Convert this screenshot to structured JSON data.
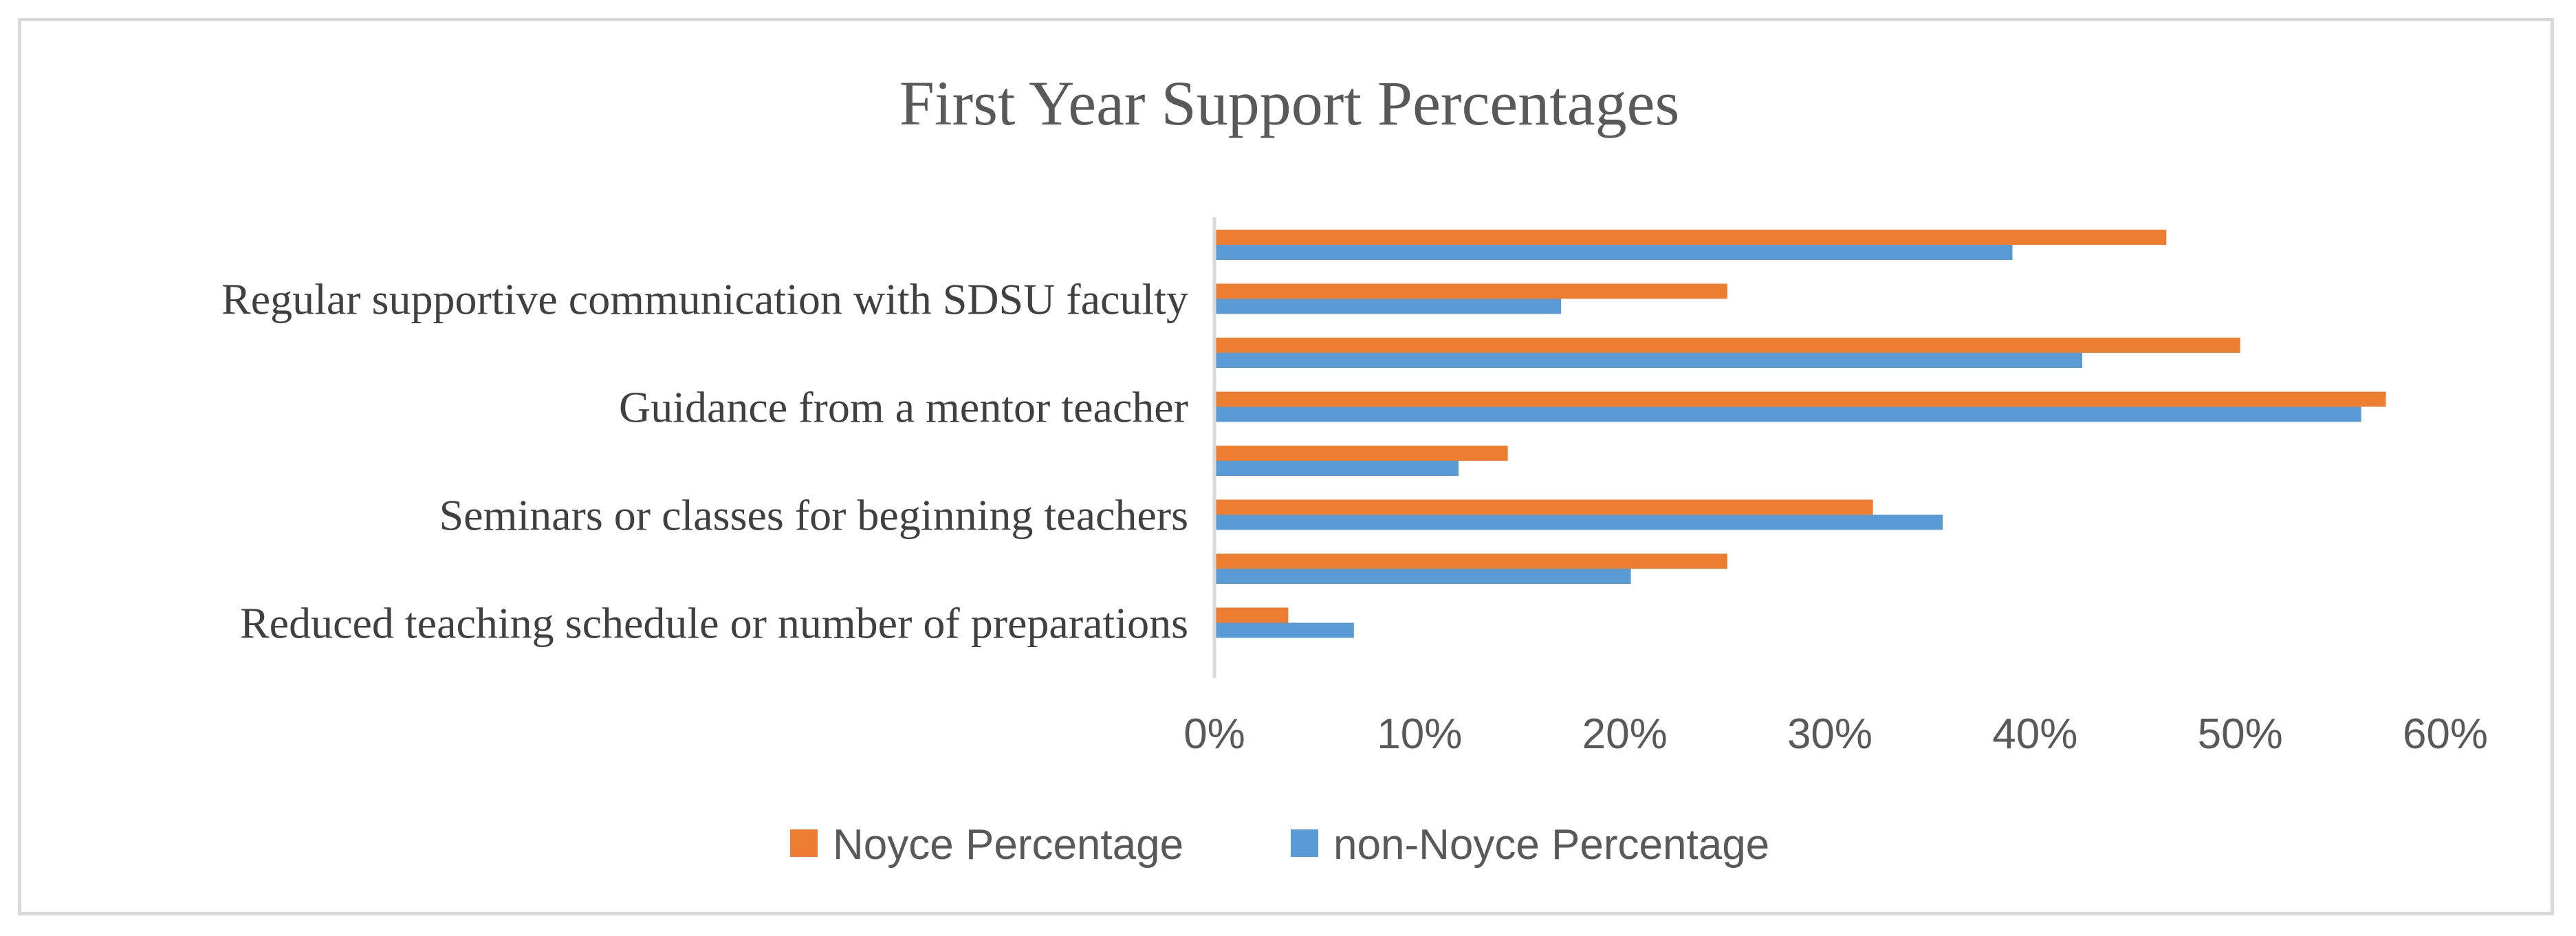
{
  "chart_data": {
    "type": "bar",
    "orientation": "horizontal",
    "title": "First Year Support Percentages",
    "xlabel": "",
    "ylabel": "",
    "xlim": [
      0,
      0.6
    ],
    "x_ticks": [
      "0%",
      "10%",
      "20%",
      "30%",
      "40%",
      "50%",
      "60%"
    ],
    "grid": false,
    "legend_position": "bottom",
    "categories": [
      "",
      "Regular supportive communication with SDSU faculty",
      "",
      "Guidance from a mentor teacher",
      "",
      "Seminars or classes for beginning teachers",
      "",
      "Reduced teaching schedule or number of preparations"
    ],
    "series": [
      {
        "name": "Noyce Percentage",
        "color": "#ed7d31",
        "values": [
          0.464,
          0.25,
          0.5,
          0.571,
          0.143,
          0.321,
          0.25,
          0.036
        ]
      },
      {
        "name": "non-Noyce Percentage",
        "color": "#5b9bd5",
        "values": [
          0.389,
          0.169,
          0.423,
          0.559,
          0.119,
          0.355,
          0.203,
          0.068
        ]
      }
    ]
  }
}
